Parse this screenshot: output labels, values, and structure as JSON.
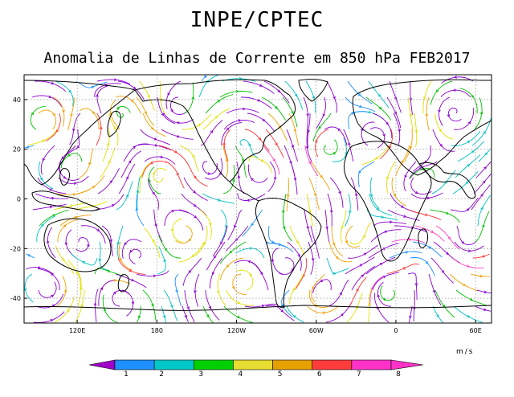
{
  "header": {
    "title": "INPE/CPTEC",
    "subtitle": "Anomalia de Linhas de Corrente em 850 hPa FEB2017"
  },
  "map": {
    "lat_ticks": [
      "40",
      "20",
      "0",
      "-20",
      "-40"
    ],
    "lon_ticks": [
      "120E",
      "180",
      "120W",
      "60W",
      "0",
      "60E"
    ],
    "streamline_colors": [
      "#8a00cc",
      "#1a8fff",
      "#00c0c0",
      "#00c000",
      "#e0e000",
      "#f0a000",
      "#ff3030",
      "#ff40c0"
    ]
  },
  "colorbar": {
    "units": "m/s",
    "labels": [
      "1",
      "2",
      "3",
      "4",
      "5",
      "6",
      "7",
      "8"
    ],
    "colors": [
      "#a000c8",
      "#1e90ff",
      "#00c8c8",
      "#00d000",
      "#e6dc32",
      "#e6a000",
      "#ff3c3c",
      "#ff32c8",
      "#a000c8"
    ]
  }
}
